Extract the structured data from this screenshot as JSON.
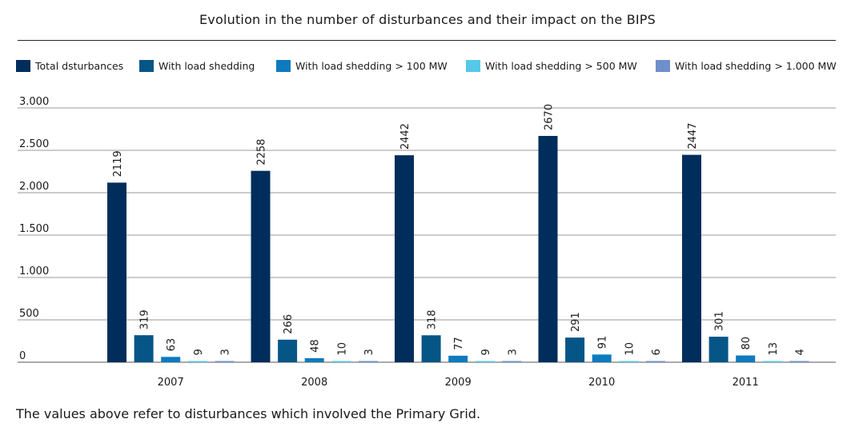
{
  "title": "Evolution in the number of disturbances and their impact on the BIPS",
  "footnote": "The values above refer to disturbances which involved the Primary Grid.",
  "legend": [
    {
      "label": "Total dsturbances",
      "color": "#012d5c"
    },
    {
      "label": "With load shedding",
      "color": "#065587"
    },
    {
      "label": "With load shedding > 100 MW",
      "color": "#0d7bbd"
    },
    {
      "label": "With load shedding > 500 MW",
      "color": "#56c8e8"
    },
    {
      "label": "With load shedding > 1.000 MW",
      "color": "#6f8fcc"
    }
  ],
  "chart_data": {
    "type": "bar",
    "title": "Evolution in the number of disturbances and their impact on the BIPS",
    "categories": [
      "2007",
      "2008",
      "2009",
      "2010",
      "2011"
    ],
    "ylim": [
      0,
      3000
    ],
    "yticks": [
      {
        "value": 0,
        "label": "0"
      },
      {
        "value": 500,
        "label": "500"
      },
      {
        "value": 1000,
        "label": "1.000"
      },
      {
        "value": 1500,
        "label": "1.500"
      },
      {
        "value": 2000,
        "label": "2.000"
      },
      {
        "value": 2500,
        "label": "2.500"
      },
      {
        "value": 3000,
        "label": "3.000"
      }
    ],
    "grid": true,
    "legend_position": "top",
    "series": [
      {
        "name": "Total dsturbances",
        "color": "#012d5c",
        "values": [
          2119,
          2258,
          2442,
          2670,
          2447
        ]
      },
      {
        "name": "With load shedding",
        "color": "#065587",
        "values": [
          319,
          266,
          318,
          291,
          301
        ]
      },
      {
        "name": "With load shedding > 100 MW",
        "color": "#0d7bbd",
        "values": [
          63,
          48,
          77,
          91,
          80
        ]
      },
      {
        "name": "With load shedding > 500 MW",
        "color": "#56c8e8",
        "values": [
          9,
          10,
          9,
          10,
          13
        ]
      },
      {
        "name": "With load shedding > 1.000 MW",
        "color": "#6f8fcc",
        "values": [
          3,
          3,
          3,
          6,
          4
        ]
      }
    ]
  }
}
